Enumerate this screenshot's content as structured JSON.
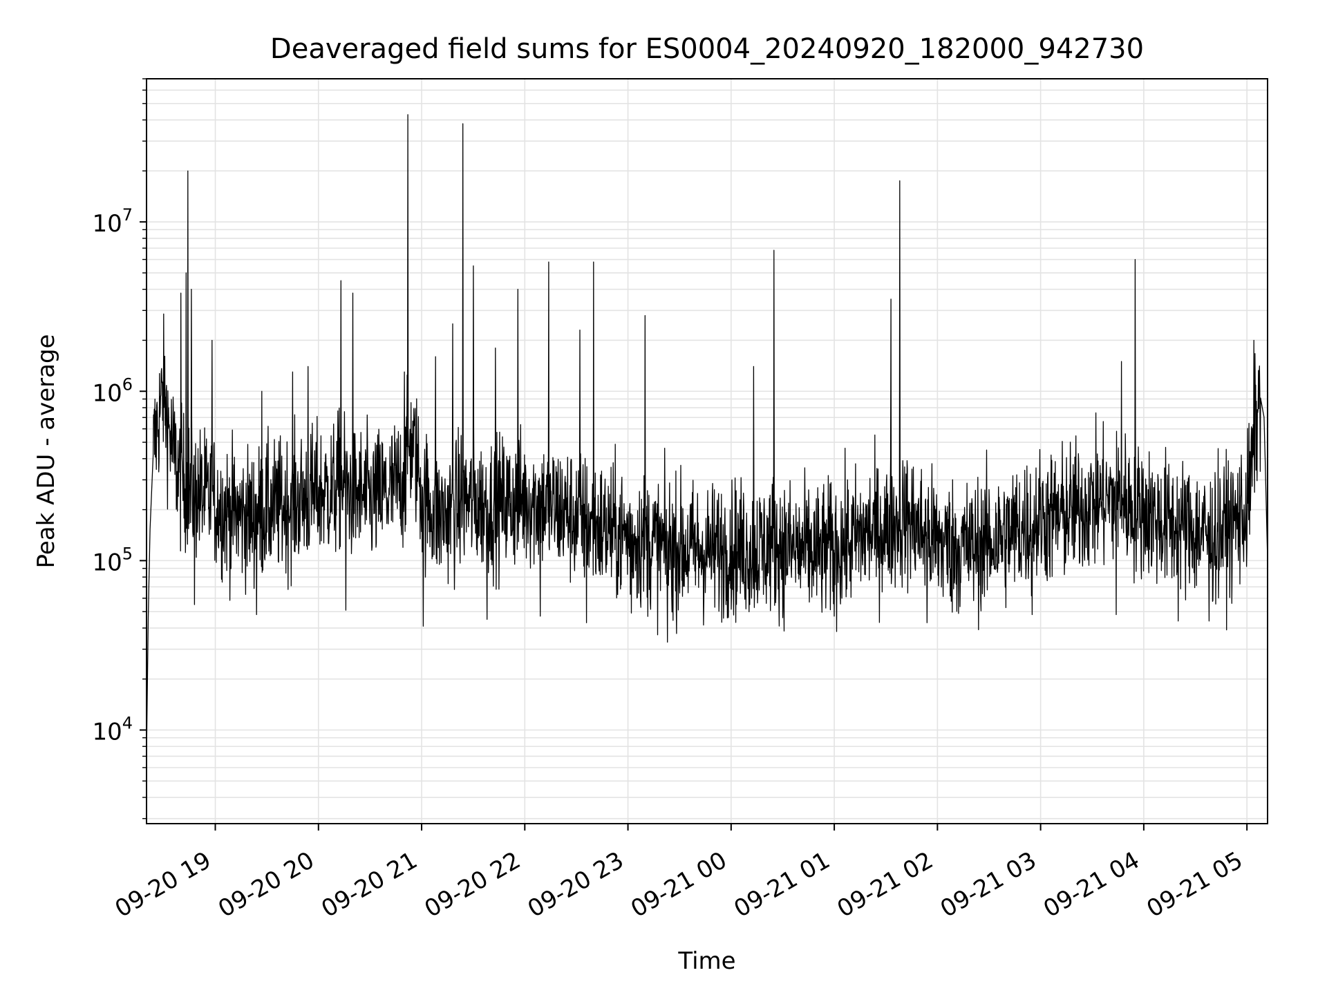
{
  "chart_data": {
    "type": "line",
    "title": "Deaveraged field sums for ES0004_20240920_182000_942730",
    "xlabel": "Time",
    "ylabel": "Peak ADU - average",
    "yscale": "log",
    "ylim": [
      2800,
      70000000
    ],
    "xlim": [
      "2024-09-20T18:20:00",
      "2024-09-21T05:12:00"
    ],
    "grid": true,
    "line_color": "#000000",
    "x_ticks": [
      "09-20 19",
      "09-20 20",
      "09-20 21",
      "09-20 22",
      "09-20 23",
      "09-21 00",
      "09-21 01",
      "09-21 02",
      "09-21 03",
      "09-21 04",
      "09-21 05"
    ],
    "x_tick_times": [
      "2024-09-20T19:00:00",
      "2024-09-20T20:00:00",
      "2024-09-20T21:00:00",
      "2024-09-20T22:00:00",
      "2024-09-20T23:00:00",
      "2024-09-21T00:00:00",
      "2024-09-21T01:00:00",
      "2024-09-21T02:00:00",
      "2024-09-21T03:00:00",
      "2024-09-21T04:00:00",
      "2024-09-21T05:00:00"
    ],
    "y_ticks": [
      {
        "value": 10000,
        "base": "10",
        "exp": "4"
      },
      {
        "value": 100000,
        "base": "10",
        "exp": "5"
      },
      {
        "value": 1000000,
        "base": "10",
        "exp": "6"
      },
      {
        "value": 10000000,
        "base": "10",
        "exp": "7"
      }
    ],
    "series": [
      {
        "x": [
          "2024-09-20T18:20:00",
          "2024-09-20T18:21:00",
          "2024-09-20T18:22:00",
          "2024-09-20T18:24:00",
          "2024-09-20T18:26:00",
          "2024-09-20T18:28:00",
          "2024-09-20T18:30:00",
          "2024-09-20T18:32:00",
          "2024-09-20T18:35:00",
          "2024-09-20T18:38:00",
          "2024-09-20T18:40:00",
          "2024-09-20T18:44:00",
          "2024-09-20T18:46:00",
          "2024-09-20T18:48:00",
          "2024-09-20T18:50:00",
          "2024-09-20T18:55:00",
          "2024-09-20T19:00:00",
          "2024-09-20T19:05:00",
          "2024-09-20T19:10:00",
          "2024-09-20T19:20:00",
          "2024-09-20T19:30:00",
          "2024-09-20T19:40:00",
          "2024-09-20T19:50:00",
          "2024-09-20T20:00:00",
          "2024-09-20T20:10:00",
          "2024-09-20T20:12:00",
          "2024-09-20T20:20:00",
          "2024-09-20T20:30:00",
          "2024-09-20T20:40:00",
          "2024-09-20T20:50:00",
          "2024-09-20T20:53:00",
          "2024-09-20T20:57:00",
          "2024-09-20T21:00:00",
          "2024-09-20T21:10:00",
          "2024-09-20T21:20:00",
          "2024-09-20T21:23:00",
          "2024-09-20T21:30:00",
          "2024-09-20T21:40:00",
          "2024-09-20T21:50:00",
          "2024-09-20T22:00:00",
          "2024-09-20T22:10:00",
          "2024-09-20T22:20:00",
          "2024-09-20T22:30:00",
          "2024-09-20T22:40:00",
          "2024-09-20T22:50:00",
          "2024-09-20T23:00:00",
          "2024-09-20T23:10:00",
          "2024-09-20T23:20:00",
          "2024-09-20T23:30:00",
          "2024-09-20T23:40:00",
          "2024-09-20T23:50:00",
          "2024-09-21T00:00:00",
          "2024-09-21T00:10:00",
          "2024-09-21T00:20:00",
          "2024-09-21T00:25:00",
          "2024-09-21T00:30:00",
          "2024-09-21T00:40:00",
          "2024-09-21T00:50:00",
          "2024-09-21T01:00:00",
          "2024-09-21T01:10:00",
          "2024-09-21T01:20:00",
          "2024-09-21T01:30:00",
          "2024-09-21T01:38:00",
          "2024-09-21T01:45:00",
          "2024-09-21T01:50:00",
          "2024-09-21T02:00:00",
          "2024-09-21T02:10:00",
          "2024-09-21T02:20:00",
          "2024-09-21T02:30:00",
          "2024-09-21T02:40:00",
          "2024-09-21T02:50:00",
          "2024-09-21T03:00:00",
          "2024-09-21T03:10:00",
          "2024-09-21T03:20:00",
          "2024-09-21T03:30:00",
          "2024-09-21T03:40:00",
          "2024-09-21T03:50:00",
          "2024-09-21T03:55:00",
          "2024-09-21T04:00:00",
          "2024-09-21T04:10:00",
          "2024-09-21T04:20:00",
          "2024-09-21T04:30:00",
          "2024-09-21T04:40:00",
          "2024-09-21T04:50:00",
          "2024-09-21T05:00:00",
          "2024-09-21T05:03:00",
          "2024-09-21T05:06:00",
          "2024-09-21T05:08:00",
          "2024-09-21T05:10:00",
          "2024-09-21T05:12:00"
        ],
        "y": [
          7000,
          45000,
          150000,
          450000,
          600000,
          800000,
          1000000,
          700000,
          450000,
          350000,
          300000,
          280000,
          250000,
          260000,
          250000,
          230000,
          220000,
          200000,
          190000,
          180000,
          200000,
          210000,
          230000,
          250000,
          260000,
          300000,
          250000,
          230000,
          250000,
          300000,
          500000,
          400000,
          250000,
          180000,
          200000,
          230000,
          220000,
          210000,
          220000,
          230000,
          220000,
          200000,
          180000,
          160000,
          150000,
          140000,
          130000,
          120000,
          120000,
          115000,
          115000,
          120000,
          115000,
          120000,
          130000,
          120000,
          115000,
          110000,
          120000,
          130000,
          150000,
          150000,
          180000,
          170000,
          150000,
          130000,
          120000,
          120000,
          130000,
          140000,
          160000,
          180000,
          180000,
          200000,
          220000,
          230000,
          220000,
          200000,
          200000,
          170000,
          160000,
          150000,
          140000,
          160000,
          200000,
          350000,
          750000,
          900000,
          700000,
          100000
        ]
      }
    ],
    "spikes": [
      {
        "x": "2024-09-20T18:44:00",
        "y": 20000000
      },
      {
        "x": "2024-09-20T18:43:00",
        "y": 5000000
      },
      {
        "x": "2024-09-20T18:40:00",
        "y": 3800000
      },
      {
        "x": "2024-09-20T18:46:00",
        "y": 4000000
      },
      {
        "x": "2024-09-20T18:58:00",
        "y": 2000000
      },
      {
        "x": "2024-09-20T19:27:00",
        "y": 1000000
      },
      {
        "x": "2024-09-20T19:45:00",
        "y": 1300000
      },
      {
        "x": "2024-09-20T19:54:00",
        "y": 1400000
      },
      {
        "x": "2024-09-20T20:13:00",
        "y": 4500000
      },
      {
        "x": "2024-09-20T20:20:00",
        "y": 3800000
      },
      {
        "x": "2024-09-20T20:50:00",
        "y": 1300000
      },
      {
        "x": "2024-09-20T20:52:00",
        "y": 43000000
      },
      {
        "x": "2024-09-20T21:08:00",
        "y": 1600000
      },
      {
        "x": "2024-09-20T21:18:00",
        "y": 2500000
      },
      {
        "x": "2024-09-20T21:24:00",
        "y": 38000000
      },
      {
        "x": "2024-09-20T21:30:00",
        "y": 5500000
      },
      {
        "x": "2024-09-20T21:43:00",
        "y": 1800000
      },
      {
        "x": "2024-09-20T21:56:00",
        "y": 4000000
      },
      {
        "x": "2024-09-20T22:14:00",
        "y": 5800000
      },
      {
        "x": "2024-09-20T22:32:00",
        "y": 2300000
      },
      {
        "x": "2024-09-20T22:40:00",
        "y": 5800000
      },
      {
        "x": "2024-09-20T23:10:00",
        "y": 2800000
      },
      {
        "x": "2024-09-21T00:13:00",
        "y": 1400000
      },
      {
        "x": "2024-09-21T00:25:00",
        "y": 6800000
      },
      {
        "x": "2024-09-21T01:33:00",
        "y": 3500000
      },
      {
        "x": "2024-09-21T01:38:00",
        "y": 17500000
      },
      {
        "x": "2024-09-21T03:47:00",
        "y": 1500000
      },
      {
        "x": "2024-09-21T03:55:00",
        "y": 6000000
      },
      {
        "x": "2024-09-21T05:04:00",
        "y": 2000000
      }
    ],
    "dips": [
      {
        "x": "2024-09-20T18:48:00",
        "y": 55000
      },
      {
        "x": "2024-09-20T19:24:00",
        "y": 48000
      },
      {
        "x": "2024-09-20T20:16:00",
        "y": 51000
      },
      {
        "x": "2024-09-20T21:01:00",
        "y": 41000
      },
      {
        "x": "2024-09-20T21:38:00",
        "y": 45000
      },
      {
        "x": "2024-09-20T22:09:00",
        "y": 47000
      },
      {
        "x": "2024-09-20T22:36:00",
        "y": 43000
      },
      {
        "x": "2024-09-20T23:02:00",
        "y": 49000
      },
      {
        "x": "2024-09-20T23:23:00",
        "y": 33000
      },
      {
        "x": "2024-09-21T00:30:00",
        "y": 46000
      },
      {
        "x": "2024-09-21T01:00:00",
        "y": 47000
      },
      {
        "x": "2024-09-21T01:54:00",
        "y": 43000
      },
      {
        "x": "2024-09-21T02:55:00",
        "y": 48000
      },
      {
        "x": "2024-09-21T03:44:00",
        "y": 48000
      },
      {
        "x": "2024-09-21T04:20:00",
        "y": 44000
      },
      {
        "x": "2024-09-21T04:38:00",
        "y": 44000
      }
    ]
  }
}
